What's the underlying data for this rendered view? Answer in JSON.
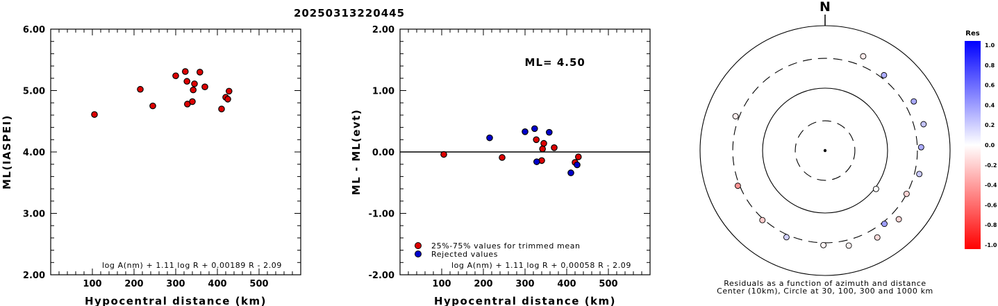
{
  "title": "20250313220445",
  "chart_data": [
    {
      "type": "scatter",
      "xlabel": "Hypocentral distance (km)",
      "ylabel": "ML(IASPEI)",
      "xlim": [
        0,
        600
      ],
      "ylim": [
        2.0,
        6.0
      ],
      "x_ticks": [
        "100",
        "200",
        "300",
        "400",
        "500"
      ],
      "y_ticks": [
        "2.00",
        "3.00",
        "4.00",
        "5.00",
        "6.00"
      ],
      "formula": "log A(nm) + 1.11 log R + 0.00189 R - 2.09",
      "series": [
        {
          "color": "#dd0000",
          "points": [
            {
              "x": 105,
              "y": 4.61
            },
            {
              "x": 215,
              "y": 5.02
            },
            {
              "x": 245,
              "y": 4.75
            },
            {
              "x": 300,
              "y": 5.24
            },
            {
              "x": 323,
              "y": 5.31
            },
            {
              "x": 327,
              "y": 5.15
            },
            {
              "x": 328,
              "y": 4.78
            },
            {
              "x": 340,
              "y": 4.82
            },
            {
              "x": 342,
              "y": 5.01
            },
            {
              "x": 345,
              "y": 5.11
            },
            {
              "x": 358,
              "y": 5.3
            },
            {
              "x": 370,
              "y": 5.06
            },
            {
              "x": 410,
              "y": 4.7
            },
            {
              "x": 420,
              "y": 4.89
            },
            {
              "x": 425,
              "y": 4.86
            },
            {
              "x": 428,
              "y": 4.99
            }
          ]
        }
      ]
    },
    {
      "type": "scatter",
      "xlabel": "Hypocentral distance (km)",
      "ylabel": "ML - ML(evt)",
      "xlim": [
        0,
        600
      ],
      "ylim": [
        -2.0,
        2.0
      ],
      "x_ticks": [
        "100",
        "200",
        "300",
        "400",
        "500"
      ],
      "y_ticks": [
        "-2.00",
        "-1.00",
        "0.00",
        "1.00",
        "2.00"
      ],
      "annotation": "ML= 4.50",
      "formula": "log A(nm) + 1.11 log R + 0.00058 R - 2.09",
      "legend": [
        "25%-75% values for trimmed mean",
        "Rejected values"
      ],
      "series": [
        {
          "name": "25%-75% values for trimmed mean",
          "color": "#dd0000",
          "points": [
            {
              "x": 105,
              "y": -0.04
            },
            {
              "x": 245,
              "y": -0.09
            },
            {
              "x": 327,
              "y": 0.2
            },
            {
              "x": 340,
              "y": -0.14
            },
            {
              "x": 342,
              "y": 0.05
            },
            {
              "x": 345,
              "y": 0.14
            },
            {
              "x": 370,
              "y": 0.07
            },
            {
              "x": 420,
              "y": -0.17
            },
            {
              "x": 428,
              "y": -0.08
            }
          ]
        },
        {
          "name": "Rejected values",
          "color": "#0000cc",
          "points": [
            {
              "x": 215,
              "y": 0.23
            },
            {
              "x": 300,
              "y": 0.33
            },
            {
              "x": 323,
              "y": 0.38
            },
            {
              "x": 328,
              "y": -0.16
            },
            {
              "x": 358,
              "y": 0.32
            },
            {
              "x": 410,
              "y": -0.34
            },
            {
              "x": 425,
              "y": -0.21
            }
          ]
        }
      ]
    },
    {
      "type": "polar-scatter",
      "north_label": "N",
      "caption_line1": "Residuals as a function of azimuth and distance",
      "caption_line2": "Center (10km), Circle at 30, 100, 300 and 1000 km",
      "rings_km": [
        30,
        100,
        300,
        1000
      ],
      "ring_styles": [
        "dashed",
        "solid",
        "dashed",
        "solid"
      ],
      "colorbar": {
        "title": "Res",
        "labels": [
          "1.0",
          "0.8",
          "0.6",
          "0.4",
          "0.2",
          "0.0",
          "-0.2",
          "-0.4",
          "-0.6",
          "-0.8",
          "-1.0"
        ],
        "max_color": "#0000ff",
        "zero_color": "#ffffff",
        "min_color": "#ff0000"
      },
      "points": [
        {
          "azimuth_deg": 22,
          "distance_km": 425,
          "res": -0.08
        },
        {
          "azimuth_deg": 38,
          "distance_km": 340,
          "res": 0.32
        },
        {
          "azimuth_deg": 61,
          "distance_km": 420,
          "res": 0.34
        },
        {
          "azimuth_deg": 75,
          "distance_km": 428,
          "res": 0.23
        },
        {
          "azimuth_deg": 88,
          "distance_km": 345,
          "res": 0.33
        },
        {
          "azimuth_deg": 104,
          "distance_km": 358,
          "res": 0.21
        },
        {
          "azimuth_deg": 118,
          "distance_km": 300,
          "res": -0.17
        },
        {
          "azimuth_deg": 127,
          "distance_km": 105,
          "res": 0.0
        },
        {
          "azimuth_deg": 133,
          "distance_km": 410,
          "res": -0.16
        },
        {
          "azimuth_deg": 141,
          "distance_km": 323,
          "res": 0.38
        },
        {
          "azimuth_deg": 149,
          "distance_km": 420,
          "res": -0.14
        },
        {
          "azimuth_deg": 166,
          "distance_km": 370,
          "res": -0.05
        },
        {
          "azimuth_deg": 181,
          "distance_km": 327,
          "res": -0.04
        },
        {
          "azimuth_deg": 204,
          "distance_km": 330,
          "res": 0.19
        },
        {
          "azimuth_deg": 222,
          "distance_km": 315,
          "res": -0.2
        },
        {
          "azimuth_deg": 248,
          "distance_km": 320,
          "res": -0.42
        },
        {
          "azimuth_deg": 291,
          "distance_km": 342,
          "res": -0.07
        }
      ]
    }
  ]
}
